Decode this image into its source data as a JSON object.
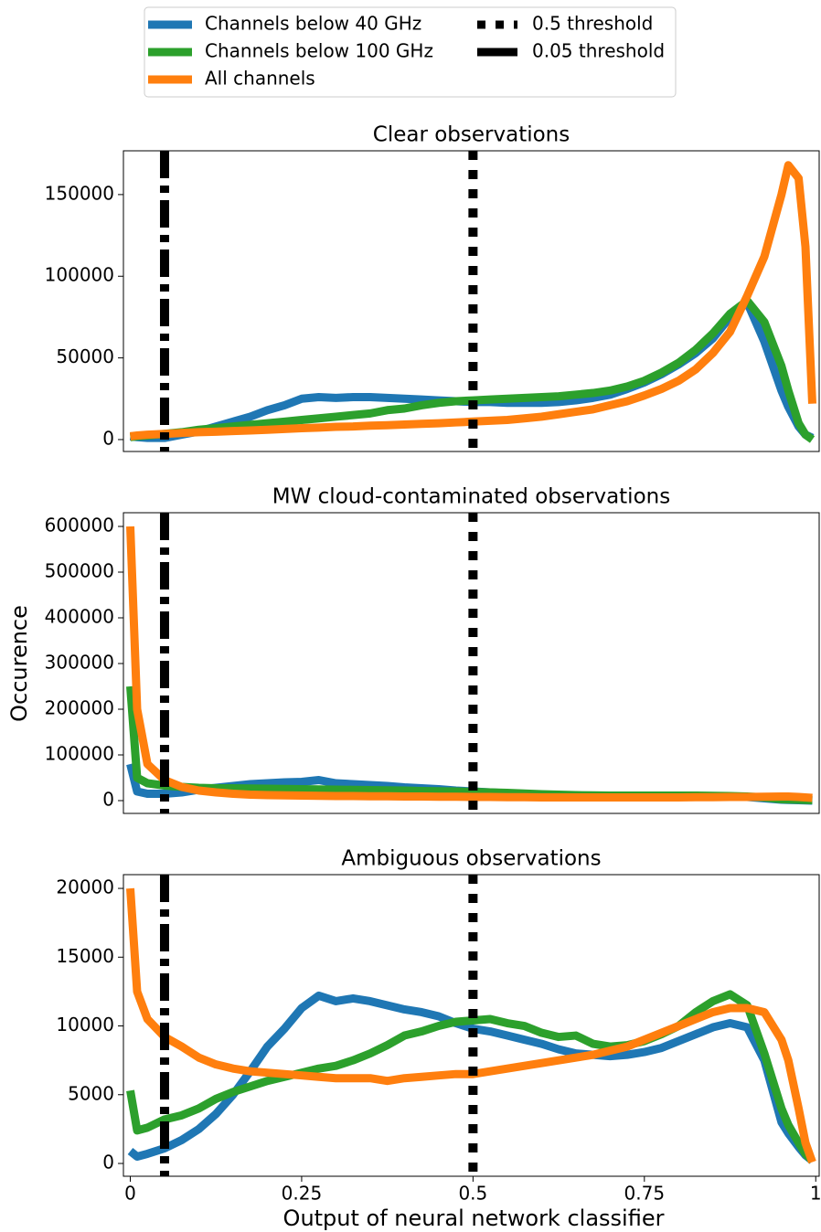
{
  "legend_corner": "top",
  "y_label": "Occurence",
  "x_label": "Output of neural network classifier",
  "thresholds": [
    {
      "name": "0.5 threshold",
      "value": 0.5,
      "style": "dotted",
      "color": "#000000"
    },
    {
      "name": "0.05 threshold",
      "value": 0.05,
      "style": "dashdot",
      "color": "#000000"
    }
  ],
  "chart_data": [
    {
      "type": "line",
      "title": "Clear observations",
      "x": [
        0,
        0.01,
        0.025,
        0.05,
        0.075,
        0.1,
        0.125,
        0.15,
        0.175,
        0.2,
        0.225,
        0.25,
        0.275,
        0.3,
        0.325,
        0.35,
        0.375,
        0.4,
        0.425,
        0.45,
        0.475,
        0.5,
        0.525,
        0.55,
        0.575,
        0.6,
        0.625,
        0.65,
        0.675,
        0.7,
        0.725,
        0.75,
        0.775,
        0.8,
        0.825,
        0.85,
        0.875,
        0.9,
        0.925,
        0.95,
        0.96,
        0.975,
        0.985,
        0.995
      ],
      "xlim": [
        -0.01,
        1.005
      ],
      "ylim": [
        -7300,
        176800
      ],
      "yticks": [
        0,
        50000,
        100000,
        150000
      ],
      "series": [
        {
          "name": "Channels below 40 GHz",
          "color": "#1f77b4",
          "values": [
            2000,
            1500,
            1000,
            1000,
            3000,
            5000,
            8000,
            11000,
            14000,
            18000,
            21000,
            25000,
            26000,
            25500,
            26000,
            26000,
            25500,
            25000,
            24500,
            24000,
            23500,
            23000,
            23000,
            22500,
            22500,
            22500,
            23000,
            24000,
            25500,
            27500,
            31000,
            35000,
            40000,
            46000,
            53000,
            62000,
            75000,
            84000,
            60000,
            30000,
            20000,
            8000,
            3000,
            1000
          ]
        },
        {
          "name": "Channels below 100 GHz",
          "color": "#2ca02c",
          "values": [
            1500,
            2000,
            2500,
            3500,
            4500,
            6000,
            7000,
            8000,
            9000,
            10000,
            11000,
            12000,
            13000,
            14000,
            15000,
            16000,
            18000,
            19000,
            21000,
            22500,
            23500,
            24000,
            24500,
            25000,
            25500,
            26000,
            26500,
            27500,
            28500,
            30000,
            32500,
            36000,
            41000,
            47000,
            55000,
            65000,
            77000,
            85000,
            72000,
            45000,
            30000,
            10000,
            3000,
            0
          ]
        },
        {
          "name": "All channels",
          "color": "#ff7f0e",
          "values": [
            2000,
            2500,
            3000,
            3500,
            4000,
            4500,
            4800,
            5200,
            5600,
            6000,
            6500,
            7000,
            7300,
            7800,
            8000,
            8500,
            8800,
            9200,
            9600,
            10000,
            10500,
            11000,
            11500,
            12000,
            13000,
            14000,
            15500,
            17000,
            18500,
            21000,
            23500,
            27000,
            31000,
            36000,
            43000,
            53000,
            66000,
            88000,
            112000,
            150000,
            168000,
            160000,
            118000,
            22000
          ]
        }
      ]
    },
    {
      "type": "line",
      "title": "MW cloud-contaminated observations",
      "x": [
        0,
        0.01,
        0.025,
        0.05,
        0.075,
        0.1,
        0.125,
        0.15,
        0.175,
        0.2,
        0.225,
        0.25,
        0.275,
        0.3,
        0.325,
        0.35,
        0.375,
        0.4,
        0.425,
        0.45,
        0.475,
        0.5,
        0.525,
        0.55,
        0.575,
        0.6,
        0.625,
        0.65,
        0.675,
        0.7,
        0.725,
        0.75,
        0.775,
        0.8,
        0.825,
        0.85,
        0.875,
        0.9,
        0.925,
        0.95,
        0.96,
        0.975,
        0.985,
        0.995
      ],
      "xlim": [
        -0.01,
        1.005
      ],
      "ylim": [
        -28000,
        630000
      ],
      "yticks": [
        0,
        100000,
        200000,
        300000,
        400000,
        500000,
        600000
      ],
      "series": [
        {
          "name": "Channels below 40 GHz",
          "color": "#1f77b4",
          "values": [
            80000,
            20000,
            15000,
            15000,
            18000,
            24000,
            28000,
            32000,
            36000,
            38000,
            40000,
            41000,
            45000,
            38000,
            36000,
            34000,
            32000,
            29000,
            27000,
            25000,
            22000,
            20000,
            18000,
            16000,
            14000,
            13000,
            12000,
            11000,
            10500,
            10000,
            10000,
            9500,
            9500,
            9000,
            9000,
            8500,
            8500,
            8000,
            5000,
            2000,
            1500,
            1000,
            500,
            0
          ]
        },
        {
          "name": "Channels below 100 GHz",
          "color": "#2ca02c",
          "values": [
            250000,
            50000,
            38000,
            33000,
            30000,
            28000,
            27000,
            27000,
            26500,
            26000,
            25500,
            25000,
            24500,
            24000,
            23500,
            23000,
            22500,
            22000,
            21000,
            20500,
            20000,
            19000,
            18000,
            17000,
            15500,
            14000,
            13000,
            12000,
            11500,
            11000,
            11000,
            11000,
            11000,
            11000,
            11000,
            10500,
            10000,
            9000,
            7000,
            3000,
            2500,
            2000,
            1500,
            1000
          ]
        },
        {
          "name": "All channels",
          "color": "#ff7f0e",
          "values": [
            600000,
            200000,
            80000,
            45000,
            30000,
            22000,
            18000,
            15000,
            13000,
            12000,
            11500,
            11000,
            10500,
            10000,
            10000,
            9500,
            9500,
            9000,
            9000,
            8500,
            8500,
            8000,
            8000,
            7500,
            7500,
            7000,
            7000,
            7000,
            7000,
            7000,
            7000,
            7000,
            7000,
            7000,
            7500,
            7500,
            8000,
            8000,
            8500,
            9000,
            9000,
            8000,
            7000,
            6000
          ]
        }
      ]
    },
    {
      "type": "line",
      "title": "Ambiguous observations",
      "x": [
        0,
        0.01,
        0.025,
        0.05,
        0.075,
        0.1,
        0.125,
        0.15,
        0.175,
        0.2,
        0.225,
        0.25,
        0.275,
        0.3,
        0.325,
        0.35,
        0.375,
        0.4,
        0.425,
        0.45,
        0.475,
        0.5,
        0.525,
        0.55,
        0.575,
        0.6,
        0.625,
        0.65,
        0.675,
        0.7,
        0.725,
        0.75,
        0.775,
        0.8,
        0.825,
        0.85,
        0.875,
        0.9,
        0.925,
        0.95,
        0.96,
        0.975,
        0.985,
        0.995
      ],
      "xlim": [
        -0.01,
        1.005
      ],
      "ylim": [
        -930,
        21000
      ],
      "yticks": [
        0,
        5000,
        10000,
        15000,
        20000
      ],
      "xticks": [
        0,
        0.25,
        0.5,
        0.75,
        1
      ],
      "series": [
        {
          "name": "Channels below 40 GHz",
          "color": "#1f77b4",
          "values": [
            900,
            500,
            700,
            1100,
            1700,
            2500,
            3600,
            5000,
            6700,
            8500,
            9800,
            11300,
            12200,
            11800,
            12000,
            11800,
            11500,
            11200,
            11000,
            10700,
            10200,
            9800,
            9600,
            9300,
            9000,
            8700,
            8300,
            8000,
            7900,
            7800,
            7900,
            8100,
            8400,
            8900,
            9400,
            9900,
            10200,
            9900,
            7500,
            3000,
            2200,
            1200,
            600,
            200
          ]
        },
        {
          "name": "Channels below 100 GHz",
          "color": "#2ca02c",
          "values": [
            5300,
            2400,
            2600,
            3200,
            3500,
            4000,
            4700,
            5200,
            5600,
            6000,
            6300,
            6600,
            6900,
            7100,
            7500,
            8000,
            8600,
            9300,
            9600,
            10000,
            10300,
            10400,
            10500,
            10200,
            10000,
            9500,
            9200,
            9300,
            8700,
            8500,
            8600,
            8900,
            9400,
            10000,
            11000,
            11800,
            12300,
            11500,
            8000,
            4000,
            2800,
            1500,
            700,
            200
          ]
        },
        {
          "name": "All channels",
          "color": "#ff7f0e",
          "values": [
            20000,
            12500,
            10500,
            9200,
            8500,
            7700,
            7200,
            6900,
            6700,
            6600,
            6500,
            6400,
            6300,
            6200,
            6200,
            6200,
            6000,
            6200,
            6300,
            6400,
            6500,
            6500,
            6700,
            6900,
            7100,
            7300,
            7500,
            7700,
            7900,
            8200,
            8500,
            9000,
            9500,
            10000,
            10500,
            11000,
            11300,
            11300,
            11000,
            9000,
            7500,
            4000,
            1500,
            100
          ]
        }
      ]
    }
  ]
}
